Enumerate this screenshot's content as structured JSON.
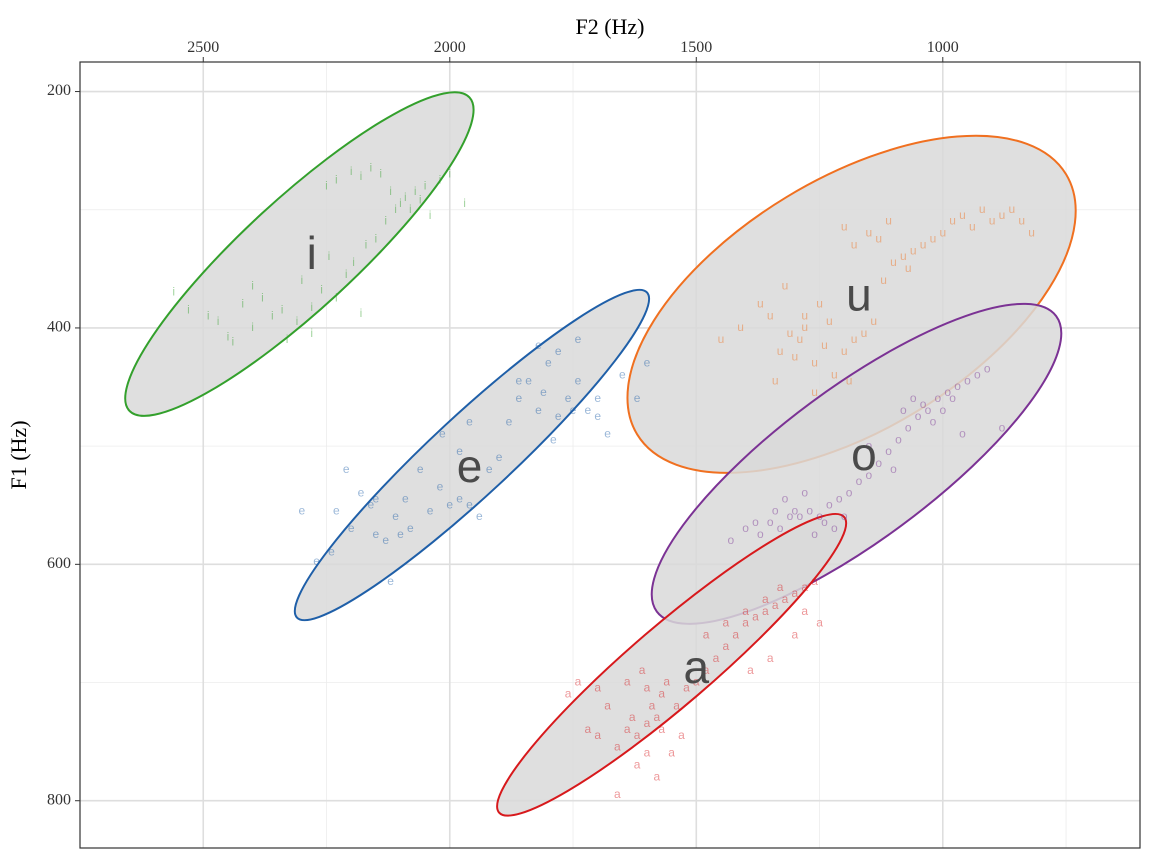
{
  "chart_data": {
    "type": "scatter",
    "xlabel": "F2 (Hz)",
    "ylabel": "F1 (Hz)",
    "x_axis_position": "top",
    "x_reversed": true,
    "y_reversed": true,
    "xlim": [
      2750,
      600
    ],
    "ylim": [
      175,
      840
    ],
    "xticks": [
      2500,
      2000,
      1500,
      1000
    ],
    "yticks": [
      200,
      400,
      600,
      800
    ],
    "grid": true,
    "legend": "none",
    "ellipse_fill": "#d9d9d9",
    "series": [
      {
        "name": "i",
        "color": "#33a02c",
        "centroid": [
          2280,
          340
        ],
        "ellipse": [
          [
            2650,
            470
          ],
          [
            1960,
            205
          ],
          [
            2055,
            295
          ],
          [
            2560,
            380
          ]
        ],
        "points": [
          [
            2560,
            370
          ],
          [
            2530,
            385
          ],
          [
            2490,
            390
          ],
          [
            2470,
            395
          ],
          [
            2450,
            408
          ],
          [
            2440,
            412
          ],
          [
            2420,
            380
          ],
          [
            2400,
            400
          ],
          [
            2380,
            375
          ],
          [
            2360,
            390
          ],
          [
            2330,
            410
          ],
          [
            2310,
            395
          ],
          [
            2300,
            360
          ],
          [
            2280,
            383
          ],
          [
            2260,
            368
          ],
          [
            2245,
            340
          ],
          [
            2230,
            375
          ],
          [
            2210,
            355
          ],
          [
            2195,
            345
          ],
          [
            2180,
            388
          ],
          [
            2170,
            330
          ],
          [
            2150,
            325
          ],
          [
            2130,
            310
          ],
          [
            2110,
            300
          ],
          [
            2090,
            290
          ],
          [
            2070,
            285
          ],
          [
            2050,
            280
          ],
          [
            2020,
            275
          ],
          [
            2000,
            270
          ],
          [
            1970,
            295
          ],
          [
            2250,
            280
          ],
          [
            2230,
            275
          ],
          [
            2200,
            268
          ],
          [
            2180,
            272
          ],
          [
            2160,
            265
          ],
          [
            2140,
            270
          ],
          [
            2120,
            285
          ],
          [
            2100,
            295
          ],
          [
            2080,
            300
          ],
          [
            2060,
            292
          ],
          [
            2040,
            305
          ],
          [
            2280,
            405
          ],
          [
            2340,
            385
          ],
          [
            2400,
            365
          ]
        ]
      },
      {
        "name": "e",
        "color": "#1f5fa8",
        "centroid": [
          1960,
          520
        ],
        "ellipse": [
          [
            2310,
            645
          ],
          [
            1600,
            370
          ],
          [
            1680,
            410
          ],
          [
            2380,
            620
          ]
        ],
        "points": [
          [
            2270,
            598
          ],
          [
            2230,
            555
          ],
          [
            2200,
            570
          ],
          [
            2180,
            540
          ],
          [
            2160,
            550
          ],
          [
            2150,
            575
          ],
          [
            2130,
            580
          ],
          [
            2110,
            560
          ],
          [
            2100,
            575
          ],
          [
            2090,
            545
          ],
          [
            2080,
            570
          ],
          [
            2060,
            520
          ],
          [
            2040,
            555
          ],
          [
            2020,
            535
          ],
          [
            2000,
            550
          ],
          [
            1980,
            545
          ],
          [
            1960,
            480
          ],
          [
            1940,
            560
          ],
          [
            1920,
            520
          ],
          [
            1900,
            510
          ],
          [
            1880,
            480
          ],
          [
            1860,
            460
          ],
          [
            1840,
            445
          ],
          [
            1820,
            470
          ],
          [
            1810,
            455
          ],
          [
            1800,
            430
          ],
          [
            1790,
            495
          ],
          [
            1780,
            475
          ],
          [
            1760,
            460
          ],
          [
            1740,
            445
          ],
          [
            1720,
            470
          ],
          [
            1700,
            460
          ],
          [
            1680,
            490
          ],
          [
            1650,
            440
          ],
          [
            1620,
            460
          ],
          [
            1600,
            430
          ],
          [
            1740,
            410
          ],
          [
            1780,
            420
          ],
          [
            1820,
            415
          ],
          [
            1860,
            445
          ],
          [
            2120,
            615
          ],
          [
            2150,
            545
          ],
          [
            2210,
            520
          ],
          [
            2240,
            590
          ],
          [
            2300,
            555
          ],
          [
            1700,
            475
          ],
          [
            1750,
            470
          ],
          [
            1960,
            550
          ],
          [
            2015,
            490
          ],
          [
            1980,
            505
          ]
        ]
      },
      {
        "name": "u",
        "color": "#f07020",
        "centroid": [
          1170,
          375
        ],
        "ellipse": [
          [
            1620,
            490
          ],
          [
            750,
            270
          ],
          [
            800,
            250
          ],
          [
            1580,
            470
          ]
        ],
        "points": [
          [
            1370,
            380
          ],
          [
            1350,
            390
          ],
          [
            1330,
            420
          ],
          [
            1310,
            405
          ],
          [
            1300,
            425
          ],
          [
            1290,
            410
          ],
          [
            1280,
            400
          ],
          [
            1260,
            430
          ],
          [
            1240,
            415
          ],
          [
            1220,
            440
          ],
          [
            1200,
            420
          ],
          [
            1180,
            410
          ],
          [
            1160,
            405
          ],
          [
            1140,
            395
          ],
          [
            1120,
            360
          ],
          [
            1100,
            345
          ],
          [
            1080,
            340
          ],
          [
            1060,
            335
          ],
          [
            1040,
            330
          ],
          [
            1020,
            325
          ],
          [
            1000,
            320
          ],
          [
            980,
            310
          ],
          [
            960,
            305
          ],
          [
            940,
            315
          ],
          [
            920,
            300
          ],
          [
            900,
            310
          ],
          [
            880,
            305
          ],
          [
            860,
            300
          ],
          [
            840,
            310
          ],
          [
            820,
            320
          ],
          [
            1200,
            315
          ],
          [
            1180,
            330
          ],
          [
            1150,
            320
          ],
          [
            1130,
            325
          ],
          [
            1110,
            310
          ],
          [
            1320,
            365
          ],
          [
            1280,
            390
          ],
          [
            1250,
            380
          ],
          [
            1230,
            395
          ],
          [
            1410,
            400
          ],
          [
            1450,
            410
          ],
          [
            1340,
            445
          ],
          [
            1260,
            455
          ],
          [
            1190,
            445
          ],
          [
            1070,
            350
          ]
        ]
      },
      {
        "name": "o",
        "color": "#7b3294",
        "centroid": [
          1160,
          510
        ],
        "ellipse": [
          [
            1580,
            640
          ],
          [
            770,
            390
          ],
          [
            820,
            380
          ],
          [
            1550,
            630
          ]
        ],
        "points": [
          [
            1430,
            580
          ],
          [
            1400,
            570
          ],
          [
            1380,
            565
          ],
          [
            1350,
            565
          ],
          [
            1330,
            570
          ],
          [
            1310,
            560
          ],
          [
            1290,
            560
          ],
          [
            1270,
            555
          ],
          [
            1250,
            560
          ],
          [
            1230,
            550
          ],
          [
            1210,
            545
          ],
          [
            1190,
            540
          ],
          [
            1170,
            530
          ],
          [
            1150,
            525
          ],
          [
            1130,
            515
          ],
          [
            1110,
            505
          ],
          [
            1090,
            495
          ],
          [
            1070,
            485
          ],
          [
            1050,
            475
          ],
          [
            1030,
            470
          ],
          [
            1010,
            460
          ],
          [
            990,
            455
          ],
          [
            970,
            450
          ],
          [
            950,
            445
          ],
          [
            930,
            440
          ],
          [
            910,
            435
          ],
          [
            1370,
            575
          ],
          [
            1340,
            555
          ],
          [
            1320,
            545
          ],
          [
            1300,
            555
          ],
          [
            1280,
            540
          ],
          [
            1260,
            575
          ],
          [
            1240,
            565
          ],
          [
            1220,
            570
          ],
          [
            1200,
            560
          ],
          [
            1080,
            470
          ],
          [
            1060,
            460
          ],
          [
            1040,
            465
          ],
          [
            1020,
            480
          ],
          [
            1000,
            470
          ],
          [
            980,
            460
          ],
          [
            960,
            490
          ],
          [
            880,
            485
          ],
          [
            1100,
            520
          ],
          [
            1150,
            500
          ]
        ]
      },
      {
        "name": "a",
        "color": "#d7191c",
        "centroid": [
          1500,
          690
        ],
        "ellipse": [
          [
            1900,
            810
          ],
          [
            1200,
            560
          ],
          [
            1290,
            580
          ],
          [
            1850,
            790
          ]
        ],
        "points": [
          [
            1660,
            755
          ],
          [
            1640,
            740
          ],
          [
            1630,
            730
          ],
          [
            1620,
            745
          ],
          [
            1600,
            735
          ],
          [
            1590,
            720
          ],
          [
            1580,
            730
          ],
          [
            1570,
            710
          ],
          [
            1560,
            700
          ],
          [
            1540,
            720
          ],
          [
            1520,
            705
          ],
          [
            1500,
            700
          ],
          [
            1480,
            690
          ],
          [
            1460,
            680
          ],
          [
            1440,
            670
          ],
          [
            1420,
            660
          ],
          [
            1400,
            650
          ],
          [
            1380,
            645
          ],
          [
            1360,
            640
          ],
          [
            1340,
            635
          ],
          [
            1320,
            630
          ],
          [
            1300,
            625
          ],
          [
            1280,
            620
          ],
          [
            1260,
            615
          ],
          [
            1600,
            760
          ],
          [
            1620,
            770
          ],
          [
            1580,
            780
          ],
          [
            1660,
            795
          ],
          [
            1700,
            745
          ],
          [
            1720,
            740
          ],
          [
            1680,
            720
          ],
          [
            1700,
            705
          ],
          [
            1740,
            700
          ],
          [
            1760,
            710
          ],
          [
            1480,
            660
          ],
          [
            1440,
            650
          ],
          [
            1400,
            640
          ],
          [
            1360,
            630
          ],
          [
            1330,
            620
          ],
          [
            1300,
            660
          ],
          [
            1280,
            640
          ],
          [
            1250,
            650
          ],
          [
            1350,
            680
          ],
          [
            1390,
            690
          ],
          [
            1550,
            760
          ],
          [
            1600,
            705
          ],
          [
            1640,
            700
          ],
          [
            1570,
            740
          ],
          [
            1530,
            745
          ],
          [
            1610,
            690
          ]
        ]
      }
    ]
  }
}
